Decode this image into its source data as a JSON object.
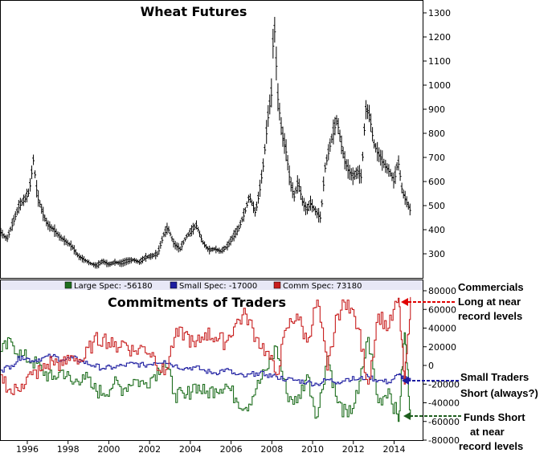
{
  "chart_data": [
    {
      "type": "line",
      "subtype": "ohlc-bars",
      "title": "Wheat Futures",
      "xlabel": "",
      "ylabel": "",
      "xlim": [
        1994.7,
        2015.4
      ],
      "ylim": [
        200,
        1350
      ],
      "x_ticks": [
        "1996",
        "1998",
        "2000",
        "2002",
        "2004",
        "2006",
        "2008",
        "2010",
        "2012",
        "2014"
      ],
      "y_ticks": [
        "300",
        "400",
        "500",
        "600",
        "700",
        "800",
        "900",
        "1000",
        "1100",
        "1200",
        "1300"
      ],
      "grid": false,
      "series": [
        {
          "color": "#000000",
          "points": [
            [
              1994.7,
              390
            ],
            [
              1995.0,
              360
            ],
            [
              1995.3,
              430
            ],
            [
              1995.6,
              500
            ],
            [
              1995.9,
              530
            ],
            [
              1996.1,
              560
            ],
            [
              1996.3,
              690
            ],
            [
              1996.5,
              540
            ],
            [
              1996.8,
              460
            ],
            [
              1997.0,
              420
            ],
            [
              1997.3,
              400
            ],
            [
              1997.6,
              370
            ],
            [
              1997.9,
              350
            ],
            [
              1998.2,
              330
            ],
            [
              1998.5,
              290
            ],
            [
              1998.8,
              275
            ],
            [
              1999.1,
              260
            ],
            [
              1999.4,
              250
            ],
            [
              1999.7,
              270
            ],
            [
              2000.0,
              255
            ],
            [
              2000.3,
              265
            ],
            [
              2000.6,
              260
            ],
            [
              2000.9,
              270
            ],
            [
              2001.2,
              275
            ],
            [
              2001.5,
              265
            ],
            [
              2001.8,
              285
            ],
            [
              2002.1,
              290
            ],
            [
              2002.4,
              300
            ],
            [
              2002.7,
              380
            ],
            [
              2002.9,
              410
            ],
            [
              2003.2,
              340
            ],
            [
              2003.5,
              320
            ],
            [
              2003.8,
              370
            ],
            [
              2004.1,
              400
            ],
            [
              2004.3,
              420
            ],
            [
              2004.6,
              350
            ],
            [
              2004.9,
              315
            ],
            [
              2005.2,
              320
            ],
            [
              2005.5,
              310
            ],
            [
              2005.8,
              330
            ],
            [
              2006.1,
              370
            ],
            [
              2006.4,
              410
            ],
            [
              2006.7,
              480
            ],
            [
              2006.9,
              540
            ],
            [
              2007.2,
              470
            ],
            [
              2007.4,
              560
            ],
            [
              2007.6,
              680
            ],
            [
              2007.8,
              860
            ],
            [
              2008.0,
              980
            ],
            [
              2008.1,
              1300
            ],
            [
              2008.3,
              950
            ],
            [
              2008.5,
              800
            ],
            [
              2008.7,
              730
            ],
            [
              2008.9,
              600
            ],
            [
              2009.1,
              540
            ],
            [
              2009.3,
              600
            ],
            [
              2009.5,
              520
            ],
            [
              2009.7,
              480
            ],
            [
              2009.9,
              510
            ],
            [
              2010.2,
              470
            ],
            [
              2010.4,
              450
            ],
            [
              2010.6,
              650
            ],
            [
              2010.8,
              730
            ],
            [
              2011.0,
              800
            ],
            [
              2011.2,
              860
            ],
            [
              2011.4,
              760
            ],
            [
              2011.6,
              680
            ],
            [
              2011.8,
              640
            ],
            [
              2012.0,
              620
            ],
            [
              2012.2,
              640
            ],
            [
              2012.4,
              620
            ],
            [
              2012.6,
              900
            ],
            [
              2012.8,
              880
            ],
            [
              2013.0,
              760
            ],
            [
              2013.2,
              720
            ],
            [
              2013.4,
              690
            ],
            [
              2013.6,
              660
            ],
            [
              2013.8,
              640
            ],
            [
              2014.0,
              600
            ],
            [
              2014.2,
              690
            ],
            [
              2014.4,
              560
            ],
            [
              2014.6,
              520
            ],
            [
              2014.8,
              480
            ]
          ]
        }
      ]
    },
    {
      "type": "line",
      "subtype": "step",
      "title": "Commitments of Traders",
      "xlabel": "",
      "ylabel": "",
      "xlim": [
        1994.7,
        2015.4
      ],
      "ylim": [
        -80000,
        80000
      ],
      "x_ticks": [
        "1996",
        "1998",
        "2000",
        "2002",
        "2004",
        "2006",
        "2008",
        "2010",
        "2012",
        "2014"
      ],
      "y_ticks": [
        "-80000",
        "-60000",
        "-40000",
        "-20000",
        "0",
        "20000",
        "40000",
        "60000",
        "80000"
      ],
      "grid": false,
      "legend": {
        "placement": "top",
        "entries": [
          {
            "label": "Large Spec: -56180",
            "color": "#1e6e1e"
          },
          {
            "label": "Small Spec: -17000",
            "color": "#1c1ca0"
          },
          {
            "label": "Comm Spec: 73180",
            "color": "#c81e1e"
          }
        ]
      },
      "series": [
        {
          "name": "Large Spec",
          "color": "#1e6e1e",
          "points": [
            [
              1994.7,
              15000
            ],
            [
              1995.2,
              25000
            ],
            [
              1995.7,
              10000
            ],
            [
              1996.2,
              5000
            ],
            [
              1996.7,
              -5000
            ],
            [
              1997.2,
              -15000
            ],
            [
              1997.7,
              -5000
            ],
            [
              1998.2,
              -20000
            ],
            [
              1998.7,
              -10000
            ],
            [
              1999.2,
              -25000
            ],
            [
              1999.7,
              -30000
            ],
            [
              2000.2,
              -20000
            ],
            [
              2000.7,
              -25000
            ],
            [
              2001.2,
              -15000
            ],
            [
              2001.7,
              -20000
            ],
            [
              2002.2,
              -10000
            ],
            [
              2002.7,
              5000
            ],
            [
              2003.2,
              -30000
            ],
            [
              2003.7,
              -35000
            ],
            [
              2004.2,
              -20000
            ],
            [
              2004.7,
              -30000
            ],
            [
              2005.2,
              -25000
            ],
            [
              2005.7,
              -20000
            ],
            [
              2006.2,
              -35000
            ],
            [
              2006.7,
              -45000
            ],
            [
              2007.2,
              -25000
            ],
            [
              2007.7,
              -5000
            ],
            [
              2008.2,
              20000
            ],
            [
              2008.7,
              -30000
            ],
            [
              2009.2,
              -40000
            ],
            [
              2009.7,
              -10000
            ],
            [
              2010.2,
              -55000
            ],
            [
              2010.7,
              10000
            ],
            [
              2011.2,
              -40000
            ],
            [
              2011.7,
              -55000
            ],
            [
              2012.2,
              -30000
            ],
            [
              2012.7,
              30000
            ],
            [
              2013.2,
              -40000
            ],
            [
              2013.7,
              -25000
            ],
            [
              2014.2,
              -60000
            ],
            [
              2014.5,
              35000
            ],
            [
              2014.8,
              -56180
            ]
          ]
        },
        {
          "name": "Small Spec",
          "color": "#1c1ca0",
          "points": [
            [
              1994.7,
              -5000
            ],
            [
              1995.2,
              0
            ],
            [
              1995.7,
              10000
            ],
            [
              1996.2,
              5000
            ],
            [
              1996.7,
              8000
            ],
            [
              1997.2,
              10000
            ],
            [
              1997.7,
              6000
            ],
            [
              1998.2,
              8000
            ],
            [
              1998.7,
              4000
            ],
            [
              1999.2,
              0
            ],
            [
              1999.7,
              -3000
            ],
            [
              2000.2,
              -2000
            ],
            [
              2000.7,
              0
            ],
            [
              2001.2,
              2000
            ],
            [
              2001.7,
              0
            ],
            [
              2002.2,
              3000
            ],
            [
              2002.7,
              5000
            ],
            [
              2003.2,
              0
            ],
            [
              2003.7,
              -3000
            ],
            [
              2004.2,
              -2000
            ],
            [
              2004.7,
              -6000
            ],
            [
              2005.2,
              -8000
            ],
            [
              2005.7,
              -4000
            ],
            [
              2006.2,
              -10000
            ],
            [
              2006.7,
              -12000
            ],
            [
              2007.2,
              -8000
            ],
            [
              2007.7,
              -10000
            ],
            [
              2008.2,
              -12000
            ],
            [
              2008.7,
              -15000
            ],
            [
              2009.2,
              -16000
            ],
            [
              2009.7,
              -18000
            ],
            [
              2010.2,
              -20000
            ],
            [
              2010.7,
              -15000
            ],
            [
              2011.2,
              -18000
            ],
            [
              2011.7,
              -14000
            ],
            [
              2012.2,
              -15000
            ],
            [
              2012.7,
              -12000
            ],
            [
              2013.2,
              -16000
            ],
            [
              2013.7,
              -18000
            ],
            [
              2014.2,
              -10000
            ],
            [
              2014.5,
              -14000
            ],
            [
              2014.8,
              -17000
            ]
          ]
        },
        {
          "name": "Comm Spec",
          "color": "#c81e1e",
          "points": [
            [
              1994.7,
              -10000
            ],
            [
              1995.2,
              -30000
            ],
            [
              1995.7,
              -20000
            ],
            [
              1996.2,
              -10000
            ],
            [
              1996.7,
              -5000
            ],
            [
              1997.2,
              5000
            ],
            [
              1997.7,
              0
            ],
            [
              1998.2,
              10000
            ],
            [
              1998.7,
              5000
            ],
            [
              1999.2,
              25000
            ],
            [
              1999.7,
              30000
            ],
            [
              2000.2,
              20000
            ],
            [
              2000.7,
              25000
            ],
            [
              2001.2,
              15000
            ],
            [
              2001.7,
              20000
            ],
            [
              2002.2,
              10000
            ],
            [
              2002.7,
              -10000
            ],
            [
              2003.2,
              30000
            ],
            [
              2003.7,
              35000
            ],
            [
              2004.2,
              20000
            ],
            [
              2004.7,
              35000
            ],
            [
              2005.2,
              30000
            ],
            [
              2005.7,
              25000
            ],
            [
              2006.2,
              45000
            ],
            [
              2006.7,
              55000
            ],
            [
              2007.2,
              30000
            ],
            [
              2007.7,
              15000
            ],
            [
              2008.2,
              -10000
            ],
            [
              2008.7,
              40000
            ],
            [
              2009.2,
              55000
            ],
            [
              2009.7,
              25000
            ],
            [
              2010.2,
              70000
            ],
            [
              2010.7,
              -5000
            ],
            [
              2011.2,
              55000
            ],
            [
              2011.7,
              70000
            ],
            [
              2012.2,
              40000
            ],
            [
              2012.7,
              -20000
            ],
            [
              2013.2,
              55000
            ],
            [
              2013.7,
              40000
            ],
            [
              2014.2,
              72000
            ],
            [
              2014.5,
              -20000
            ],
            [
              2014.8,
              73180
            ]
          ]
        }
      ]
    }
  ],
  "annotations": [
    {
      "lines": [
        "Commercials",
        "Long at near",
        "record levels"
      ],
      "color": "#e00000"
    },
    {
      "lines": [
        "Small Traders",
        "Short (always?)"
      ],
      "color": "#1c1ca0"
    },
    {
      "lines": [
        "Funds Short",
        "at near",
        "record levels"
      ],
      "color": "#1e5e1e"
    }
  ]
}
